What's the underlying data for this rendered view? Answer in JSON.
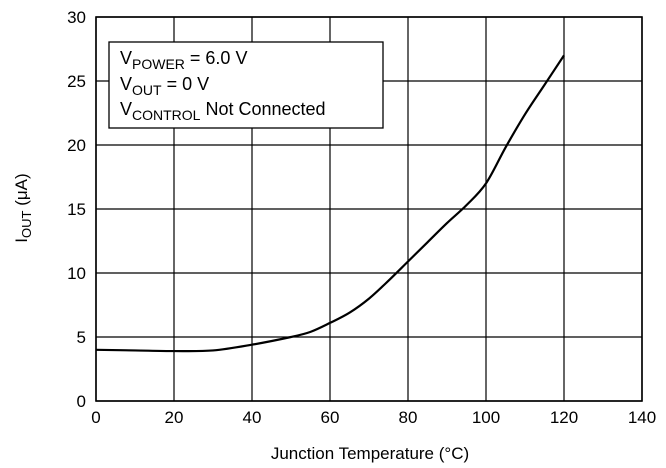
{
  "chart_data": {
    "type": "line",
    "xlabel": "Junction Temperature (°C)",
    "ylabel": {
      "main": "I",
      "sub": "OUT",
      "rest": " (μA)"
    },
    "xlim": [
      0,
      140
    ],
    "ylim": [
      0,
      30
    ],
    "xticks": [
      0,
      20,
      40,
      60,
      80,
      100,
      120,
      140
    ],
    "yticks": [
      0,
      5,
      10,
      15,
      20,
      25,
      30
    ],
    "grid": true,
    "series": [
      {
        "x": [
          0,
          10,
          20,
          30,
          40,
          50,
          55,
          60,
          65,
          70,
          75,
          80,
          85,
          90,
          95,
          100,
          105,
          110,
          115,
          120
        ],
        "y": [
          4.0,
          3.95,
          3.9,
          3.95,
          4.4,
          5.0,
          5.4,
          6.1,
          6.9,
          8.0,
          9.4,
          10.9,
          12.4,
          13.9,
          15.3,
          17.0,
          19.8,
          22.4,
          24.7,
          27.0
        ]
      }
    ],
    "annotations": [
      {
        "main": "V",
        "sub": "POWER",
        "rest": " = 6.0 V"
      },
      {
        "main": "V",
        "sub": "OUT",
        "rest": " = 0 V"
      },
      {
        "main": "V",
        "sub": "CONTROL",
        "rest": " Not Connected"
      }
    ]
  }
}
